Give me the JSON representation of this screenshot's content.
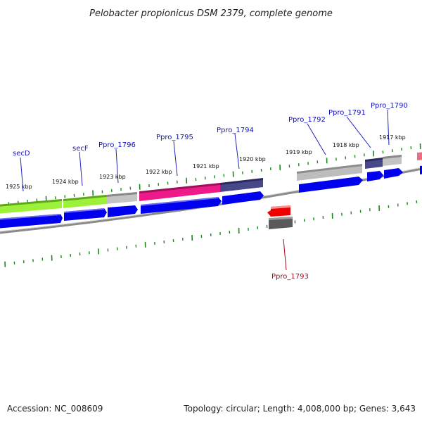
{
  "title": "Pelobacter propionicus DSM 2379, complete genome",
  "footer": {
    "accession": "Accession: NC_008609",
    "topology": "Topology: circular; Length: 4,008,000 bp; Genes: 3,643"
  },
  "kbp_labels": [
    "1925 kbp",
    "1924 kbp",
    "1923 kbp",
    "1922 kbp",
    "1921 kbp",
    "1920 kbp",
    "1919 kbp",
    "1918 kbp",
    "1917 kbp"
  ],
  "gene_labels": {
    "secD": "secD",
    "secF": "secF",
    "ppro1796": "Ppro_1796",
    "ppro1795": "Ppro_1795",
    "ppro1794": "Ppro_1794",
    "ppro1792": "Ppro_1792",
    "ppro1791": "Ppro_1791",
    "ppro1790": "Ppro_1790",
    "ppro1793": "Ppro_1793"
  },
  "colors": {
    "cds_blue": "#0000ee",
    "label_blue": "#1010c0",
    "label_red": "#b00018",
    "tick_green": "#1a8a1a",
    "backbone": "#888888",
    "lime": "#9ef13a",
    "gray": "#b8b8b8",
    "magenta": "#ee1a8a",
    "navy": "#404080",
    "red": "#ee0000",
    "dark_gray": "#555555",
    "pink": "#e86f80"
  }
}
